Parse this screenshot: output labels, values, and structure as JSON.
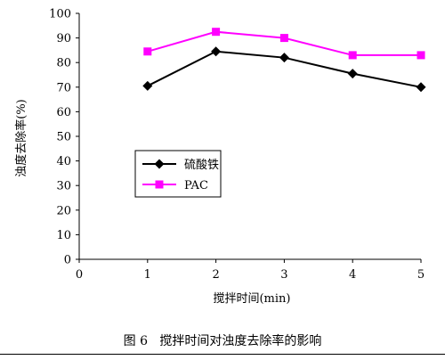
{
  "chart_data": {
    "type": "line",
    "x": [
      1,
      2,
      3,
      4,
      5
    ],
    "series": [
      {
        "name": "硫酸铁",
        "values": [
          70.5,
          84.5,
          82,
          75.5,
          70
        ],
        "color": "#000000",
        "marker": "diamond"
      },
      {
        "name": "PAC",
        "values": [
          84.5,
          92.5,
          90,
          83,
          83
        ],
        "color": "#ff00ff",
        "marker": "square"
      }
    ],
    "xlabel": "搅拌时间(min)",
    "ylabel": "浊度去除率(%)",
    "xlim": [
      0,
      5
    ],
    "ylim": [
      0,
      100
    ],
    "xticks": [
      "0",
      "1",
      "2",
      "3",
      "4",
      "5"
    ],
    "yticks": [
      "0",
      "10",
      "20",
      "30",
      "40",
      "50",
      "60",
      "70",
      "80",
      "90",
      "100"
    ],
    "grid": false,
    "legend_position": "center-left"
  },
  "caption": "图 6   搅拌时间对浊度去除率的影响"
}
